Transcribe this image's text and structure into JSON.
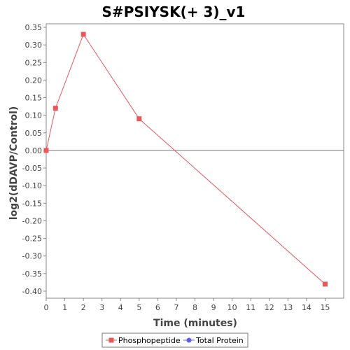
{
  "chart_data": {
    "type": "line",
    "title": "S#PSIYSK(+ 3)_v1",
    "xlabel": "Time (minutes)",
    "ylabel": "log2(dDAVP/Control)",
    "xlim": [
      0,
      16
    ],
    "ylim": [
      -0.42,
      0.36
    ],
    "x_ticks": [
      0,
      1,
      2,
      3,
      4,
      5,
      6,
      7,
      8,
      9,
      10,
      11,
      12,
      13,
      14,
      15
    ],
    "y_ticks": [
      0.35,
      0.3,
      0.25,
      0.2,
      0.15,
      0.1,
      0.05,
      0.0,
      -0.05,
      -0.1,
      -0.15,
      -0.2,
      -0.25,
      -0.3,
      -0.35,
      -0.4
    ],
    "y_tick_labels": [
      "0.35",
      "0.30",
      "0.25",
      "0.20",
      "0.15",
      "0.10",
      "0.05",
      "0.00",
      "-0.05",
      "-0.10",
      "-0.15",
      "-0.20",
      "-0.25",
      "-0.30",
      "-0.35",
      "-0.40"
    ],
    "grid": false,
    "zero_line": true,
    "legend_position": "bottom",
    "series": [
      {
        "name": "Phosphopeptide",
        "color": "#e8575a",
        "marker": "square",
        "x": [
          0,
          0.5,
          2,
          5,
          15
        ],
        "y": [
          0.0,
          0.12,
          0.33,
          0.09,
          -0.38
        ]
      },
      {
        "name": "Total Protein",
        "color": "#5b5bf0",
        "marker": "circle",
        "x": [],
        "y": []
      }
    ]
  }
}
